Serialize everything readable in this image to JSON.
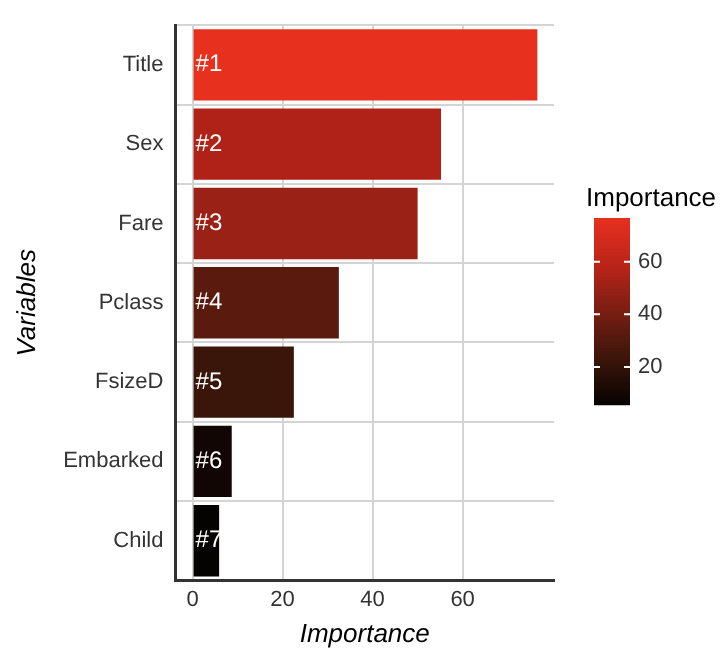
{
  "chart_data": {
    "type": "bar",
    "orientation": "horizontal",
    "xlabel": "Importance",
    "ylabel": "Variables",
    "clabel": "Importance",
    "categories": [
      "Title",
      "Sex",
      "Fare",
      "Pclass",
      "FsizeD",
      "Embarked",
      "Child"
    ],
    "values": [
      76.6,
      55.2,
      50,
      32.5,
      22.5,
      8.7,
      5.9
    ],
    "colors": [
      "#e8301f",
      "#b02218",
      "#9a2116",
      "#5a1a0e",
      "#3a1509",
      "#110604",
      "#050202"
    ],
    "annotations": [
      "#1",
      "#2",
      "#3",
      "#4",
      "#5",
      "#6",
      "#7"
    ],
    "xlim": [
      -3.8,
      80.3
    ],
    "xticks": [
      0,
      20,
      40,
      60
    ],
    "clim": [
      5.9,
      76.6
    ],
    "cticks": [
      20,
      40,
      60
    ],
    "grid": true
  }
}
